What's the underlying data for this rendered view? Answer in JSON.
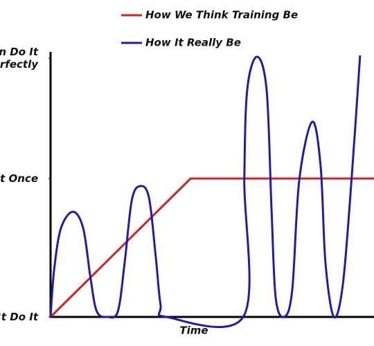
{
  "chart_data": {
    "type": "line",
    "x_label": "Time",
    "ylim": [
      0,
      1.915
    ],
    "yticks": [
      {
        "value": 0,
        "label": "n't Do It"
      },
      {
        "value": 1,
        "label": "d It Once"
      },
      {
        "value": 1.87,
        "label": "n Do It\nerfectly"
      }
    ],
    "xlim": [
      0,
      100
    ],
    "legend": "top",
    "series": [
      {
        "name": "How We Think Training Be",
        "color": "#d42020",
        "x": [
          0,
          43.3,
          100
        ],
        "values": [
          0,
          1,
          1
        ]
      },
      {
        "name": "How It Really Be",
        "color": "#1c1cb4",
        "x": [
          0,
          1.1,
          3.2,
          6.9,
          10.1,
          12.3,
          14.3,
          17.6,
          20.8,
          22.9,
          25.1,
          27.6,
          30.4,
          32.5,
          34.0,
          35.8,
          59.7,
          59.9,
          60.8,
          63.8,
          66.8,
          68.3,
          69.6,
          72.2,
          74.7,
          76.9,
          80.9,
          83.5,
          85.0,
          87.6,
          90.4,
          93.2,
          95.7
        ],
        "values": [
          0,
          0.34,
          0.64,
          0.76,
          0.64,
          0.29,
          0.04,
          0,
          0.04,
          0.39,
          0.84,
          0.945,
          0.865,
          0.44,
          0.09,
          0,
          0.005,
          0.99,
          1.64,
          1.88,
          1.64,
          0.79,
          0.14,
          0,
          0.19,
          0.99,
          1.41,
          1.09,
          0.39,
          0,
          0.24,
          1.04,
          1.89
        ]
      }
    ]
  }
}
